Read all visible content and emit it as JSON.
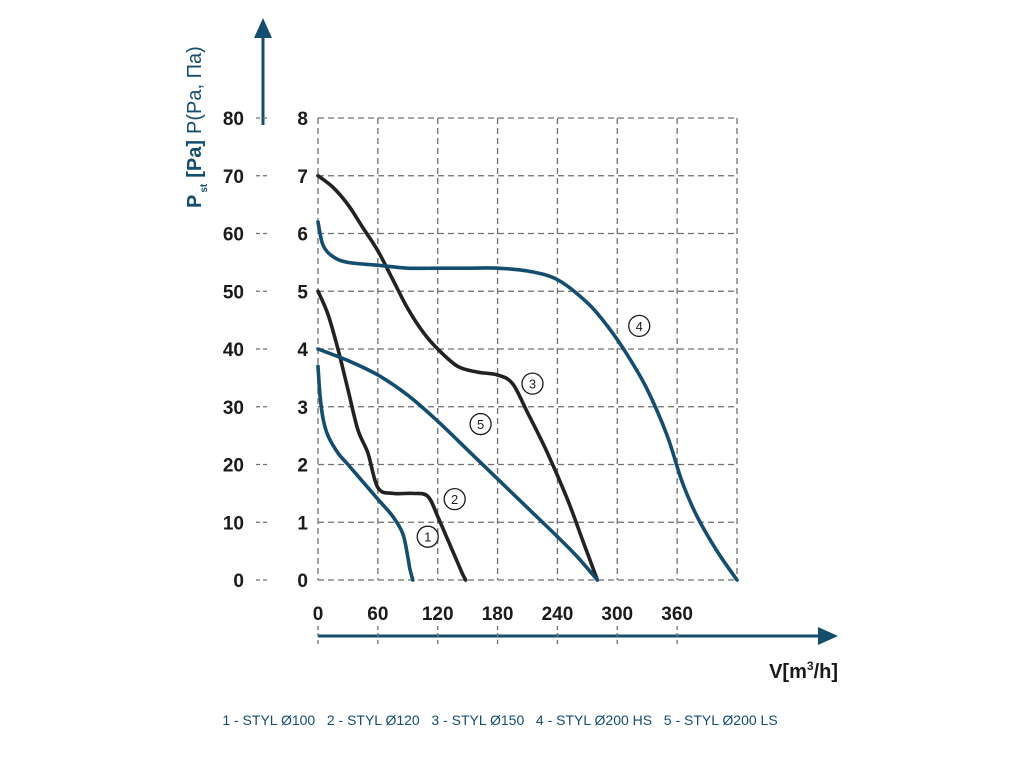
{
  "chart_data": {
    "type": "line",
    "title": "",
    "xlabel": "V[m³/h]",
    "xlabel_base": "V[m",
    "xlabel_sup": "3",
    "xlabel_end": "/h]",
    "ylabel": "Pst [Pa] P(Pa, Па)",
    "ylabel_base": "P",
    "ylabel_sub": "st",
    "ylabel_unit": "[Pa]",
    "ylabel_alt": "P(Pa, Па)",
    "xlim": [
      0,
      420
    ],
    "ylim": [
      0,
      80
    ],
    "x_ticks": [
      "0",
      "60",
      "120",
      "180",
      "240",
      "300",
      "360"
    ],
    "x_tick_values": [
      0,
      60,
      120,
      180,
      240,
      300,
      360
    ],
    "y_ticks_outer": [
      "0",
      "10",
      "20",
      "30",
      "40",
      "50",
      "60",
      "70",
      "80"
    ],
    "y_ticks_inner": [
      "0",
      "1",
      "2",
      "3",
      "4",
      "5",
      "6",
      "7",
      "8"
    ],
    "y_tick_values": [
      0,
      10,
      20,
      30,
      40,
      50,
      60,
      70,
      80
    ],
    "grid": true,
    "series": [
      {
        "name": "1",
        "label": "STYL Ø100",
        "color": "#154d6e",
        "marker": "1",
        "marker_at": [
          110,
          7.5
        ],
        "x": [
          0,
          2,
          5,
          10,
          20,
          30,
          45,
          60,
          75,
          85,
          90,
          92,
          95
        ],
        "y": [
          37,
          32,
          28,
          25,
          22,
          20,
          17,
          14,
          11,
          8,
          4,
          2,
          0
        ]
      },
      {
        "name": "2",
        "label": "STYL Ø120",
        "color": "#222222",
        "marker": "2",
        "marker_at": [
          137,
          14
        ],
        "x": [
          0,
          10,
          20,
          30,
          40,
          50,
          60,
          75,
          95,
          110,
          120,
          130,
          140,
          145,
          148
        ],
        "y": [
          50,
          46,
          40,
          33,
          26,
          22,
          16,
          15,
          15,
          14.5,
          11,
          7,
          3,
          1,
          0
        ]
      },
      {
        "name": "3",
        "label": "STYL Ø150",
        "color": "#222222",
        "marker": "3",
        "marker_at": [
          215,
          34
        ],
        "x": [
          0,
          15,
          30,
          45,
          60,
          75,
          90,
          105,
          120,
          140,
          160,
          180,
          195,
          210,
          230,
          250,
          265,
          280
        ],
        "y": [
          70,
          68,
          65,
          61,
          57,
          52,
          47,
          43,
          40,
          37,
          36,
          35.5,
          34,
          29,
          22,
          14,
          7,
          0
        ]
      },
      {
        "name": "4",
        "label": "STYL Ø200 HS",
        "color": "#154d6e",
        "marker": "4",
        "marker_at": [
          322,
          44
        ],
        "x": [
          0,
          5,
          15,
          30,
          60,
          90,
          120,
          150,
          180,
          210,
          240,
          270,
          290,
          310,
          330,
          350,
          365,
          380,
          400,
          420
        ],
        "y": [
          62,
          58,
          56,
          55,
          54.5,
          54,
          54,
          54,
          54,
          53.5,
          52,
          48,
          44,
          39,
          33,
          25,
          17,
          11,
          5,
          0
        ]
      },
      {
        "name": "5",
        "label": "STYL Ø200 LS",
        "color": "#154d6e",
        "marker": "5",
        "marker_at": [
          163,
          27
        ],
        "x": [
          0,
          30,
          60,
          90,
          120,
          150,
          180,
          210,
          240,
          260,
          280
        ],
        "y": [
          40,
          38,
          35.5,
          32,
          27.5,
          22.5,
          17.5,
          12.5,
          7.5,
          4,
          0
        ]
      }
    ],
    "legend": "1 - STYL Ø100   2 - STYL Ø120   3 - STYL Ø150   4 - STYL Ø200 HS   5 - STYL Ø200 LS",
    "legend_position": "bottom"
  }
}
